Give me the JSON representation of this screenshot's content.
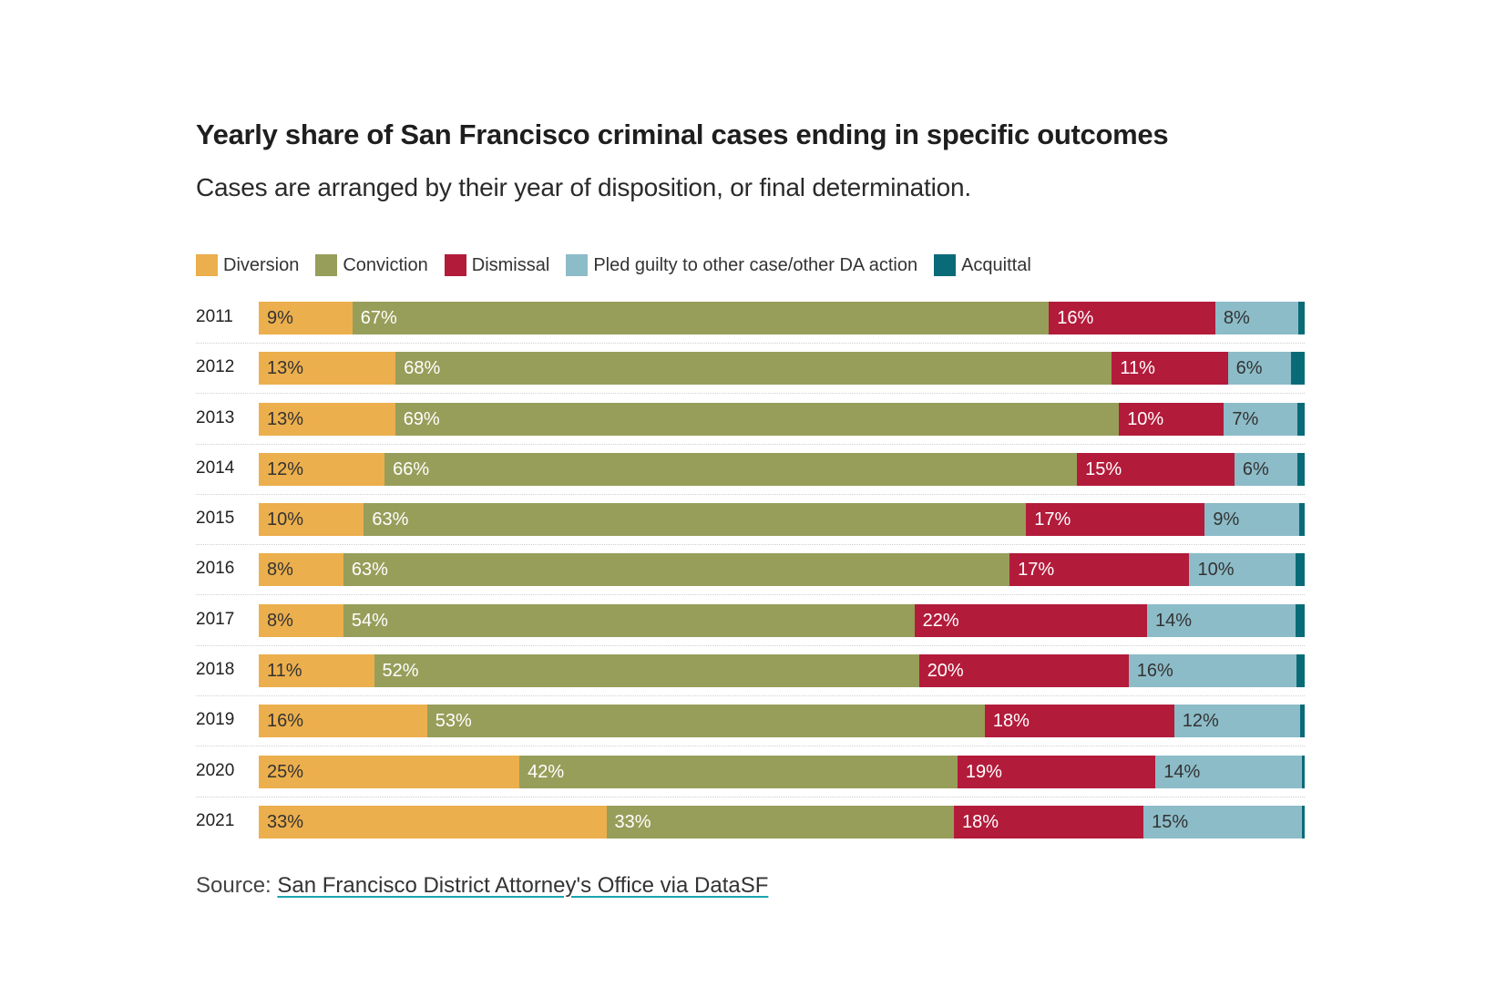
{
  "chart_data": {
    "type": "bar",
    "orientation": "horizontal",
    "stacked": true,
    "normalized_percent": true,
    "title": "Yearly share of San Francisco criminal cases ending in specific outcomes",
    "subtitle": "Cases are arranged by their year of disposition, or final determination.",
    "legend_position": "top-left",
    "grid": false,
    "categories": [
      "2011",
      "2012",
      "2013",
      "2014",
      "2015",
      "2016",
      "2017",
      "2018",
      "2019",
      "2020",
      "2021"
    ],
    "series": [
      {
        "name": "Diversion",
        "color": "#ecaf4d",
        "label_color": "#333333",
        "values": [
          9,
          13,
          13,
          12,
          10,
          8,
          8,
          11,
          16,
          25,
          33
        ]
      },
      {
        "name": "Conviction",
        "color": "#979e5a",
        "label_color": "#ffffff",
        "values": [
          67,
          68,
          69,
          66,
          63,
          63,
          54,
          52,
          53,
          42,
          33
        ]
      },
      {
        "name": "Dismissal",
        "color": "#b31b3b",
        "label_color": "#ffffff",
        "values": [
          16,
          11,
          10,
          15,
          17,
          17,
          22,
          20,
          18,
          19,
          18
        ]
      },
      {
        "name": "Pled guilty to other case/other DA action",
        "color": "#8cbcc8",
        "label_color": "#333333",
        "values": [
          8,
          6,
          7,
          6,
          9,
          10,
          14,
          16,
          12,
          14,
          15
        ]
      },
      {
        "name": "Acquittal",
        "color": "#0a6b78",
        "label_color": "#ffffff",
        "values": [
          0.6,
          1.3,
          0.7,
          0.7,
          0.5,
          0.9,
          0.9,
          0.8,
          0.4,
          0.3,
          0.3
        ],
        "labeled": false
      }
    ],
    "value_suffix": "%"
  },
  "source": {
    "prefix": "Source: ",
    "link_text": "San Francisco District Attorney's Office via DataSF"
  }
}
